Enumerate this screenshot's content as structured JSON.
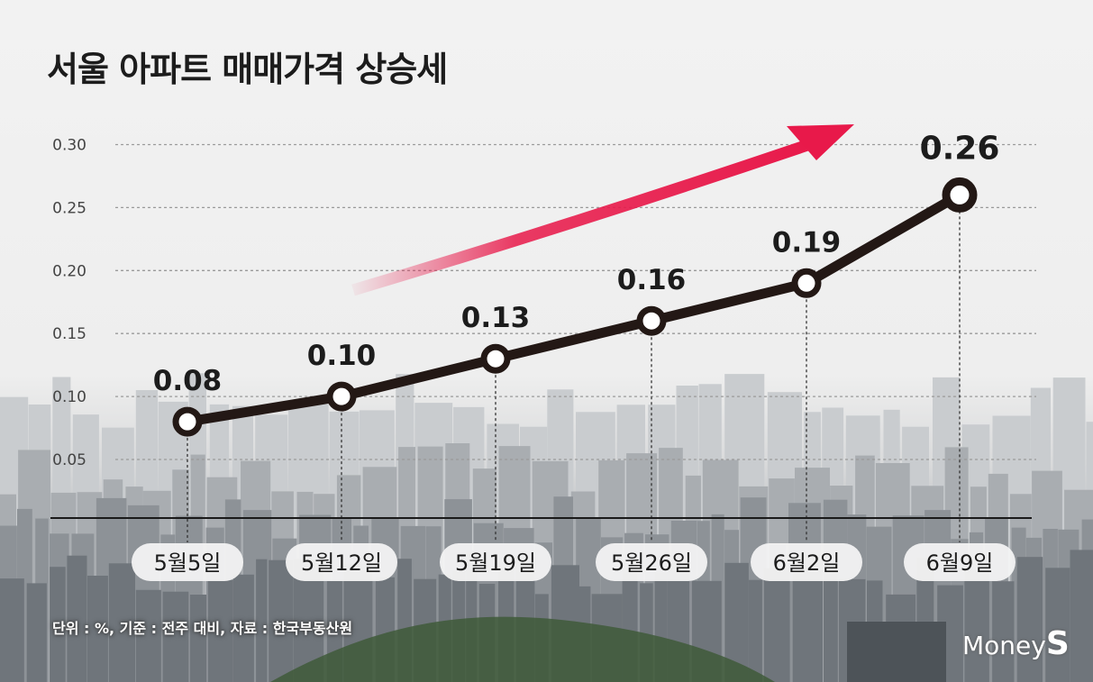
{
  "title": "서울 아파트 매매가격 상승세",
  "footnote": "단위 : %, 기준 : 전주 대비, 자료 : 한국부동산원",
  "logo": {
    "prefix": "Money",
    "suffix": "S"
  },
  "colors": {
    "line": "#231815",
    "arrow": "#e8194a",
    "grid": "#9a9a9a",
    "text": "#1c1c1c",
    "pill": "#f3f3f3"
  },
  "chart_data": {
    "type": "line",
    "title": "서울 아파트 매매가격 상승세",
    "categories": [
      "5월5일",
      "5월12일",
      "5월19일",
      "5월26일",
      "6월2일",
      "6월9일"
    ],
    "series": [
      {
        "values": [
          0.08,
          0.1,
          0.13,
          0.16,
          0.19,
          0.26
        ]
      }
    ],
    "data_labels": [
      "0.08",
      "0.10",
      "0.13",
      "0.16",
      "0.19",
      "0.26"
    ],
    "y_ticks": [
      {
        "value": 0.05,
        "label": "0.05"
      },
      {
        "value": 0.1,
        "label": "0.10"
      },
      {
        "value": 0.15,
        "label": "0.15"
      },
      {
        "value": 0.2,
        "label": "0.20"
      },
      {
        "value": 0.25,
        "label": "0.25"
      },
      {
        "value": 0.3,
        "label": "0.30"
      }
    ],
    "ylim": [
      0,
      0.3
    ],
    "grid": true,
    "legend": "none",
    "annotation": "upward-trend-arrow"
  }
}
